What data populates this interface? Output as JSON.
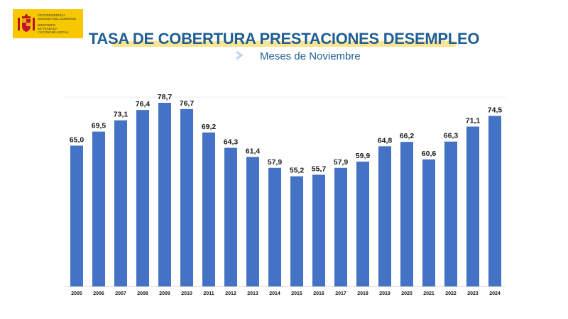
{
  "logo": {
    "lines": [
      "VICEPRESIDENCIA",
      "SEGUNDA DEL GOBIERNO",
      "MINISTERIO",
      "DE TRABAJO",
      "Y ECONOMÍA SOCIAL"
    ]
  },
  "header": {
    "title": "TASA DE COBERTURA PRESTACIONES DESEMPLEO",
    "subtitle": "Meses de Noviembre"
  },
  "colors": {
    "bar": "#4472c4",
    "title": "#1f5f94",
    "highlight": "#fbe592",
    "logo_bg": "#f7c800"
  },
  "chart_data": {
    "type": "bar",
    "title": "TASA DE COBERTURA PRESTACIONES DESEMPLEO",
    "subtitle": "Meses de Noviembre",
    "categories": [
      "2005",
      "2006",
      "2007",
      "2008",
      "2009",
      "2010",
      "2011",
      "2012",
      "2013",
      "2014",
      "2015",
      "2016",
      "2017",
      "2018",
      "2019",
      "2020",
      "2021",
      "2022",
      "2023",
      "2024"
    ],
    "values": [
      65.0,
      69.5,
      73.1,
      76.4,
      78.7,
      76.7,
      69.2,
      64.3,
      61.4,
      57.9,
      55.2,
      55.7,
      57.9,
      59.9,
      64.8,
      66.2,
      60.6,
      66.3,
      71.1,
      74.5
    ],
    "value_labels": [
      "65,0",
      "69,5",
      "73,1",
      "76,4",
      "78,7",
      "76,7",
      "69,2",
      "64,3",
      "61,4",
      "57,9",
      "55,2",
      "55,7",
      "57,9",
      "59,9",
      "64,8",
      "66,2",
      "60,6",
      "66,3",
      "71,1",
      "74,5"
    ],
    "xlabel": "",
    "ylabel": "",
    "ylim": [
      20,
      80
    ],
    "grid": false,
    "legend": "none"
  }
}
